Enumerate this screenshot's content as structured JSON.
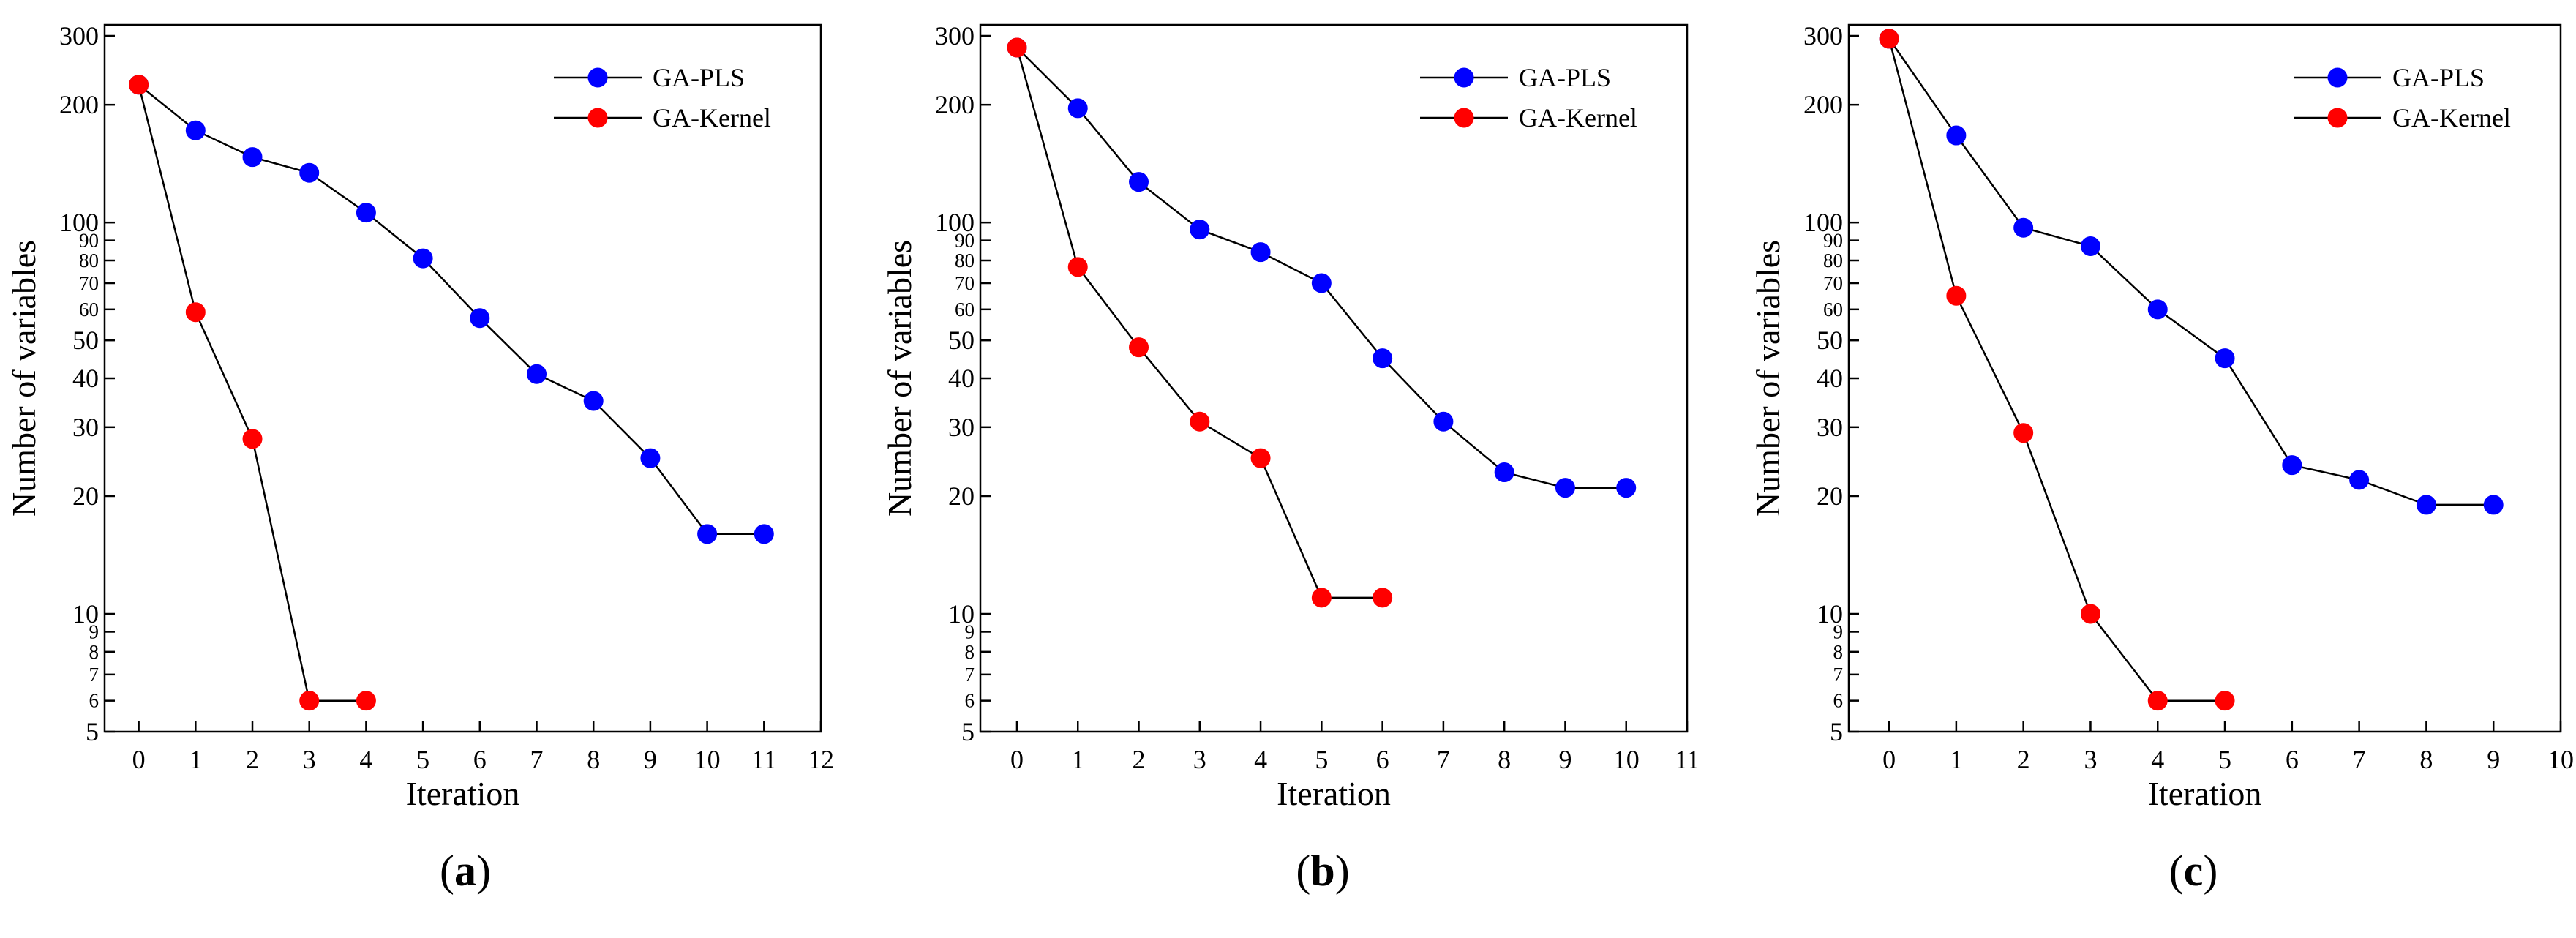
{
  "figure": {
    "panels": [
      "(a)",
      "(b)",
      "(c)"
    ]
  },
  "chart_data": [
    {
      "type": "line",
      "panel_label": "a",
      "xlabel": "Iteration",
      "ylabel": "Number of variables",
      "yscale": "log",
      "xlim": [
        -0.6,
        12
      ],
      "ylim": [
        5,
        320
      ],
      "xticks": [
        0,
        1,
        2,
        3,
        4,
        5,
        6,
        7,
        8,
        9,
        10,
        11,
        12
      ],
      "yticks_major": [
        5,
        6,
        7,
        8,
        9,
        10,
        20,
        30,
        40,
        50,
        60,
        70,
        80,
        90,
        100,
        200,
        300
      ],
      "legend_position": "top-right",
      "series": [
        {
          "name": "GA-PLS",
          "color": "#0000ff",
          "x": [
            0,
            1,
            2,
            3,
            4,
            5,
            6,
            7,
            8,
            9,
            10,
            11
          ],
          "values": [
            225,
            172,
            147,
            134,
            106,
            81,
            57,
            41,
            35,
            25,
            16,
            16
          ]
        },
        {
          "name": "GA-Kernel",
          "color": "#ff0000",
          "x": [
            0,
            1,
            2,
            3,
            4
          ],
          "values": [
            225,
            59,
            28,
            6,
            6
          ]
        }
      ]
    },
    {
      "type": "line",
      "panel_label": "b",
      "xlabel": "Iteration",
      "ylabel": "Number of variables",
      "yscale": "log",
      "xlim": [
        -0.6,
        11
      ],
      "ylim": [
        5,
        320
      ],
      "xticks": [
        0,
        1,
        2,
        3,
        4,
        5,
        6,
        7,
        8,
        9,
        10,
        11
      ],
      "yticks_major": [
        5,
        6,
        7,
        8,
        9,
        10,
        20,
        30,
        40,
        50,
        60,
        70,
        80,
        90,
        100,
        200,
        300
      ],
      "legend_position": "top-right",
      "series": [
        {
          "name": "GA-PLS",
          "color": "#0000ff",
          "x": [
            0,
            1,
            2,
            3,
            4,
            5,
            6,
            7,
            8,
            9,
            10
          ],
          "values": [
            280,
            196,
            127,
            96,
            84,
            70,
            45,
            31,
            23,
            21,
            21
          ]
        },
        {
          "name": "GA-Kernel",
          "color": "#ff0000",
          "x": [
            0,
            1,
            2,
            3,
            4,
            5,
            6
          ],
          "values": [
            280,
            77,
            48,
            31,
            25,
            11,
            11
          ]
        }
      ]
    },
    {
      "type": "line",
      "panel_label": "c",
      "xlabel": "Iteration",
      "ylabel": "Number of variables",
      "yscale": "log",
      "xlim": [
        -0.6,
        10
      ],
      "ylim": [
        5,
        320
      ],
      "xticks": [
        0,
        1,
        2,
        3,
        4,
        5,
        6,
        7,
        8,
        9,
        10
      ],
      "yticks_major": [
        5,
        6,
        7,
        8,
        9,
        10,
        20,
        30,
        40,
        50,
        60,
        70,
        80,
        90,
        100,
        200,
        300
      ],
      "legend_position": "top-right",
      "series": [
        {
          "name": "GA-PLS",
          "color": "#0000ff",
          "x": [
            0,
            1,
            2,
            3,
            4,
            5,
            6,
            7,
            8,
            9
          ],
          "values": [
            295,
            167,
            97,
            87,
            60,
            45,
            24,
            22,
            19,
            19
          ]
        },
        {
          "name": "GA-Kernel",
          "color": "#ff0000",
          "x": [
            0,
            1,
            2,
            3,
            4,
            5
          ],
          "values": [
            295,
            65,
            29,
            10,
            6,
            6
          ]
        }
      ]
    }
  ]
}
